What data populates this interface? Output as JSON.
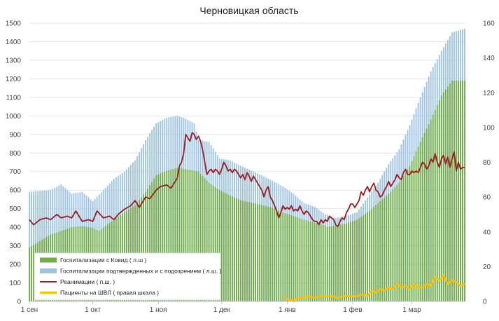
{
  "chart_data": {
    "type": "bar",
    "title": "Черновицкая область",
    "x_ticks": [
      "1 сен",
      "1 окт",
      "1 ноя",
      "1 дек",
      "1 янв",
      "1 фев",
      "1 мар"
    ],
    "left_axis": {
      "ylim": [
        0,
        1500
      ],
      "ticks": [
        0,
        100,
        200,
        300,
        400,
        500,
        600,
        700,
        800,
        900,
        1000,
        1100,
        1200,
        1300,
        1400,
        1500
      ]
    },
    "right_axis": {
      "ylim": [
        0,
        160
      ],
      "ticks": [
        0,
        20,
        40,
        60,
        80,
        100,
        120,
        140,
        160
      ]
    },
    "grid": true,
    "legend_position": "bottom-left",
    "x_range_days": [
      0,
      206
    ],
    "series": [
      {
        "name": "Госпитализации с Ковид ( л.ш )",
        "kind": "bar",
        "axis": "left",
        "color": "#70ad47",
        "points": [
          [
            0,
            290
          ],
          [
            10,
            360
          ],
          [
            20,
            400
          ],
          [
            25,
            405
          ],
          [
            30,
            395
          ],
          [
            33,
            380
          ],
          [
            40,
            440
          ],
          [
            50,
            520
          ],
          [
            55,
            590
          ],
          [
            60,
            680
          ],
          [
            65,
            705
          ],
          [
            70,
            720
          ],
          [
            73,
            715
          ],
          [
            80,
            700
          ],
          [
            85,
            640
          ],
          [
            90,
            600
          ],
          [
            95,
            570
          ],
          [
            100,
            545
          ],
          [
            110,
            520
          ],
          [
            115,
            505
          ],
          [
            120,
            480
          ],
          [
            125,
            460
          ],
          [
            130,
            440
          ],
          [
            135,
            425
          ],
          [
            140,
            410
          ],
          [
            141,
            400
          ],
          [
            150,
            420
          ],
          [
            155,
            440
          ],
          [
            160,
            480
          ],
          [
            165,
            530
          ],
          [
            170,
            580
          ],
          [
            175,
            640
          ],
          [
            180,
            730
          ],
          [
            185,
            860
          ],
          [
            190,
            980
          ],
          [
            195,
            1110
          ],
          [
            200,
            1190
          ],
          [
            206,
            1190
          ]
        ]
      },
      {
        "name": "Госпитализации подтвержденных и с подозрением ( л.ш. )",
        "kind": "bar",
        "axis": "left",
        "color": "#9dc3e6",
        "points": [
          [
            0,
            590
          ],
          [
            10,
            600
          ],
          [
            15,
            630
          ],
          [
            20,
            580
          ],
          [
            25,
            590
          ],
          [
            30,
            540
          ],
          [
            35,
            600
          ],
          [
            40,
            660
          ],
          [
            45,
            700
          ],
          [
            50,
            760
          ],
          [
            55,
            870
          ],
          [
            60,
            960
          ],
          [
            65,
            990
          ],
          [
            70,
            1000
          ],
          [
            73,
            990
          ],
          [
            78,
            960
          ],
          [
            80,
            870
          ],
          [
            85,
            860
          ],
          [
            90,
            770
          ],
          [
            95,
            760
          ],
          [
            100,
            730
          ],
          [
            110,
            680
          ],
          [
            115,
            650
          ],
          [
            120,
            620
          ],
          [
            125,
            580
          ],
          [
            130,
            530
          ],
          [
            135,
            510
          ],
          [
            140,
            470
          ],
          [
            145,
            450
          ],
          [
            150,
            460
          ],
          [
            155,
            480
          ],
          [
            160,
            560
          ],
          [
            165,
            640
          ],
          [
            170,
            740
          ],
          [
            175,
            820
          ],
          [
            180,
            950
          ],
          [
            185,
            1100
          ],
          [
            190,
            1240
          ],
          [
            195,
            1350
          ],
          [
            200,
            1450
          ],
          [
            206,
            1470
          ]
        ]
      },
      {
        "name": "Реанимации ( п.ш. )",
        "kind": "line",
        "axis": "right",
        "color": "#9b1c1c",
        "points": [
          [
            0,
            47
          ],
          [
            2,
            44
          ],
          [
            5,
            47
          ],
          [
            8,
            48
          ],
          [
            10,
            47
          ],
          [
            13,
            50
          ],
          [
            15,
            48
          ],
          [
            18,
            49
          ],
          [
            20,
            48
          ],
          [
            22,
            52
          ],
          [
            25,
            46
          ],
          [
            28,
            47
          ],
          [
            30,
            46
          ],
          [
            32,
            52
          ],
          [
            35,
            48
          ],
          [
            38,
            49
          ],
          [
            40,
            47
          ],
          [
            42,
            50
          ],
          [
            45,
            53
          ],
          [
            48,
            55
          ],
          [
            50,
            58
          ],
          [
            52,
            54
          ],
          [
            55,
            60
          ],
          [
            57,
            59
          ],
          [
            60,
            64
          ],
          [
            62,
            66
          ],
          [
            65,
            67
          ],
          [
            67,
            65
          ],
          [
            70,
            71
          ],
          [
            71,
            78
          ],
          [
            72,
            80
          ],
          [
            73,
            85
          ],
          [
            74,
            96
          ],
          [
            75,
            94
          ],
          [
            76,
            92
          ],
          [
            77,
            97
          ],
          [
            78,
            96
          ],
          [
            79,
            93
          ],
          [
            80,
            95
          ],
          [
            81,
            92
          ],
          [
            82,
            87
          ],
          [
            83,
            80
          ],
          [
            84,
            73
          ],
          [
            85,
            75
          ],
          [
            86,
            76
          ],
          [
            87,
            74
          ],
          [
            88,
            76
          ],
          [
            89,
            75
          ],
          [
            90,
            73
          ],
          [
            91,
            76
          ],
          [
            92,
            80
          ],
          [
            93,
            78
          ],
          [
            94,
            75
          ],
          [
            95,
            76
          ],
          [
            96,
            74
          ],
          [
            97,
            76
          ],
          [
            98,
            75
          ],
          [
            99,
            73
          ],
          [
            100,
            71
          ],
          [
            101,
            73
          ],
          [
            102,
            70
          ],
          [
            103,
            74
          ],
          [
            104,
            72
          ],
          [
            105,
            69
          ],
          [
            106,
            72
          ],
          [
            107,
            70
          ],
          [
            108,
            68
          ],
          [
            109,
            66
          ],
          [
            110,
            64
          ],
          [
            111,
            60
          ],
          [
            112,
            64
          ],
          [
            113,
            66
          ],
          [
            114,
            60
          ],
          [
            115,
            58
          ],
          [
            116,
            55
          ],
          [
            117,
            52
          ],
          [
            118,
            48
          ],
          [
            119,
            51
          ],
          [
            120,
            55
          ],
          [
            121,
            53
          ],
          [
            122,
            54
          ],
          [
            123,
            53
          ],
          [
            124,
            55
          ],
          [
            125,
            52
          ],
          [
            126,
            53
          ],
          [
            127,
            52
          ],
          [
            128,
            55
          ],
          [
            129,
            52
          ],
          [
            130,
            50
          ],
          [
            131,
            52
          ],
          [
            132,
            51
          ],
          [
            133,
            49
          ],
          [
            134,
            47
          ],
          [
            135,
            46
          ],
          [
            136,
            46
          ],
          [
            137,
            44
          ],
          [
            138,
            47
          ],
          [
            139,
            45
          ],
          [
            140,
            47
          ],
          [
            141,
            46
          ],
          [
            142,
            49
          ],
          [
            143,
            48
          ],
          [
            144,
            47
          ],
          [
            145,
            44
          ],
          [
            146,
            43
          ],
          [
            147,
            46
          ],
          [
            148,
            48
          ],
          [
            149,
            47
          ],
          [
            150,
            51
          ],
          [
            151,
            53
          ],
          [
            152,
            56
          ],
          [
            153,
            56
          ],
          [
            154,
            54
          ],
          [
            155,
            56
          ],
          [
            156,
            58
          ],
          [
            157,
            63
          ],
          [
            158,
            61
          ],
          [
            159,
            64
          ],
          [
            160,
            66
          ],
          [
            161,
            63
          ],
          [
            162,
            66
          ],
          [
            163,
            68
          ],
          [
            164,
            64
          ],
          [
            165,
            63
          ],
          [
            166,
            60
          ],
          [
            167,
            61
          ],
          [
            168,
            64
          ],
          [
            169,
            66
          ],
          [
            170,
            69
          ],
          [
            171,
            66
          ],
          [
            172,
            68
          ],
          [
            173,
            70
          ],
          [
            174,
            73
          ],
          [
            175,
            71
          ],
          [
            176,
            70
          ],
          [
            177,
            74
          ],
          [
            178,
            76
          ],
          [
            179,
            73
          ],
          [
            180,
            73
          ],
          [
            181,
            75
          ],
          [
            182,
            74
          ],
          [
            183,
            75
          ],
          [
            184,
            74
          ],
          [
            185,
            77
          ],
          [
            186,
            80
          ],
          [
            187,
            79
          ],
          [
            188,
            76
          ],
          [
            189,
            78
          ],
          [
            190,
            82
          ],
          [
            191,
            80
          ],
          [
            192,
            85
          ],
          [
            193,
            80
          ],
          [
            194,
            77
          ],
          [
            195,
            82
          ],
          [
            196,
            84
          ],
          [
            197,
            79
          ],
          [
            198,
            83
          ],
          [
            199,
            77
          ],
          [
            200,
            82
          ],
          [
            201,
            86
          ],
          [
            202,
            75
          ],
          [
            203,
            80
          ],
          [
            204,
            76
          ],
          [
            205,
            77
          ],
          [
            206,
            77
          ]
        ]
      },
      {
        "name": "Пациенты на ШВЛ ( правая шкала )",
        "kind": "line",
        "axis": "right",
        "color": "#ffc000",
        "points": [
          [
            121,
            2
          ],
          [
            123,
            1
          ],
          [
            125,
            0
          ],
          [
            127,
            2
          ],
          [
            130,
            2
          ],
          [
            132,
            3
          ],
          [
            135,
            2
          ],
          [
            138,
            3
          ],
          [
            140,
            3
          ],
          [
            143,
            3
          ],
          [
            146,
            2
          ],
          [
            149,
            3
          ],
          [
            152,
            3
          ],
          [
            155,
            3
          ],
          [
            158,
            4
          ],
          [
            160,
            3
          ],
          [
            162,
            6
          ],
          [
            164,
            5
          ],
          [
            166,
            7
          ],
          [
            168,
            6
          ],
          [
            170,
            8
          ],
          [
            172,
            7
          ],
          [
            174,
            10
          ],
          [
            176,
            8
          ],
          [
            178,
            9
          ],
          [
            180,
            7
          ],
          [
            182,
            10
          ],
          [
            184,
            8
          ],
          [
            186,
            8
          ],
          [
            188,
            10
          ],
          [
            190,
            9
          ],
          [
            192,
            14
          ],
          [
            194,
            12
          ],
          [
            196,
            15
          ],
          [
            198,
            10
          ],
          [
            200,
            12
          ],
          [
            202,
            11
          ],
          [
            204,
            9
          ],
          [
            206,
            10
          ]
        ]
      }
    ]
  }
}
